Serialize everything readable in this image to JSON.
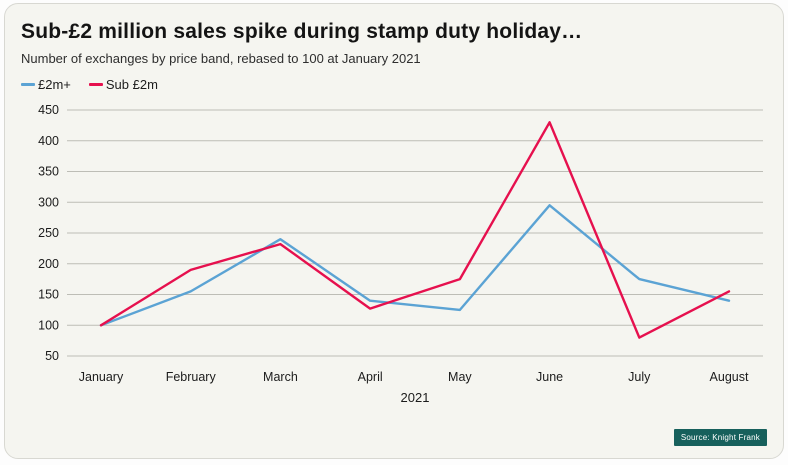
{
  "header": {
    "title": "Sub-£2 million sales spike during stamp duty holiday…",
    "subtitle": "Number of exchanges by price band, rebased to 100 at January 2021"
  },
  "source_badge": {
    "text": "Source: Knight Frank",
    "color": "#17605c"
  },
  "chart_data": {
    "type": "line",
    "categories": [
      "January",
      "February",
      "March",
      "April",
      "May",
      "June",
      "July",
      "August"
    ],
    "series": [
      {
        "name": "£2m+",
        "color": "#5ba3d4",
        "values": [
          100,
          155,
          240,
          140,
          125,
          295,
          175,
          140
        ]
      },
      {
        "name": "Sub £2m",
        "color": "#e6104e",
        "values": [
          100,
          190,
          232,
          127,
          175,
          430,
          80,
          155
        ]
      }
    ],
    "title": "Sub-£2 million sales spike during stamp duty holiday…",
    "xlabel": "2021",
    "ylabel": "",
    "ylim": [
      50,
      450
    ],
    "yticks": [
      50,
      100,
      150,
      200,
      250,
      300,
      350,
      400,
      450
    ],
    "grid": true,
    "gridline_color": "#bdbdb6",
    "legend_position": "top-left"
  }
}
